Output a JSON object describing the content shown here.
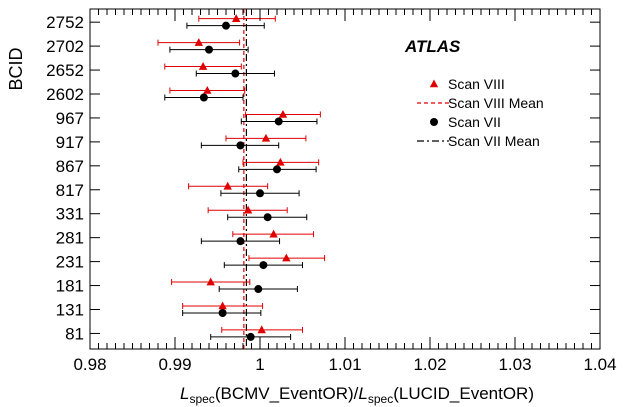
{
  "chart_data": {
    "type": "scatter",
    "title": "",
    "annotation": "ATLAS",
    "ylabel": "BCID",
    "xlabel": {
      "parts": [
        {
          "text": "L",
          "italic": true
        },
        {
          "text": "spec",
          "sub": true
        },
        {
          "text": "(BCMV_EventOR)/"
        },
        {
          "text": "L",
          "italic": true
        },
        {
          "text": "spec",
          "sub": true
        },
        {
          "text": "(LUCID_EventOR)"
        }
      ]
    },
    "xlim": [
      0.98,
      1.04
    ],
    "xticks": [
      "0.98",
      "0.99",
      "1",
      "1.01",
      "1.02",
      "1.03",
      "1.04"
    ],
    "categories": [
      "2752",
      "2702",
      "2652",
      "2602",
      "967",
      "917",
      "867",
      "817",
      "331",
      "281",
      "231",
      "181",
      "131",
      "81"
    ],
    "series": [
      {
        "name": "Scan VIII",
        "marker": "triangle",
        "color": "#e00000",
        "values": [
          0.9972,
          0.9928,
          0.9933,
          0.9938,
          1.0027,
          1.0007,
          1.0024,
          0.9962,
          0.9986,
          1.0016,
          1.0031,
          0.9942,
          0.9956,
          1.0002
        ],
        "err_lo": [
          0.0044,
          0.0048,
          0.0045,
          0.0044,
          0.0044,
          0.0047,
          0.0044,
          0.0046,
          0.0047,
          0.0048,
          0.0044,
          0.0046,
          0.0047,
          0.0047
        ],
        "err_hi": [
          0.0046,
          0.0048,
          0.0045,
          0.0044,
          0.0044,
          0.0047,
          0.0045,
          0.0047,
          0.0046,
          0.0047,
          0.0045,
          0.0046,
          0.0047,
          0.0048
        ]
      },
      {
        "name": "Scan  VII",
        "marker": "circle",
        "color": "#000000",
        "values": [
          0.996,
          0.994,
          0.9971,
          0.9934,
          1.0022,
          0.9977,
          1.002,
          1.0,
          1.0009,
          0.9977,
          1.0004,
          0.9998,
          0.9956,
          0.9989
        ],
        "err_lo": [
          0.0046,
          0.0046,
          0.0046,
          0.0046,
          0.0044,
          0.0046,
          0.0045,
          0.0046,
          0.0047,
          0.0046,
          0.0046,
          0.0046,
          0.0047,
          0.0047
        ],
        "err_hi": [
          0.0045,
          0.0046,
          0.0046,
          0.0046,
          0.0045,
          0.0045,
          0.0046,
          0.0046,
          0.0046,
          0.0046,
          0.0046,
          0.0046,
          0.0045,
          0.0047
        ]
      }
    ],
    "mean_lines": [
      {
        "name": "Scan VIII Mean",
        "style": "dashed",
        "color": "#e00000",
        "x": 0.9981
      },
      {
        "name": "Scan  VII Mean",
        "style": "dashdot",
        "color": "#000000",
        "x": 0.9984
      }
    ],
    "legend": [
      {
        "label": "Scan VIII",
        "kind": "triangle",
        "color": "#e00000"
      },
      {
        "label": "Scan VIII Mean",
        "kind": "dashed",
        "color": "#e00000"
      },
      {
        "label": "Scan  VII",
        "kind": "circle",
        "color": "#000000"
      },
      {
        "label": "Scan  VII Mean",
        "kind": "dashdot",
        "color": "#000000"
      }
    ],
    "legend_position": "upper-right",
    "grid": false
  }
}
